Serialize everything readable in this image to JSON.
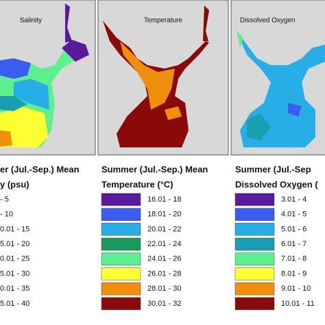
{
  "panels": [
    {
      "label": "Salinity",
      "legend_title": "er (Jul.-Sep.) Mean",
      "legend_subtitle": "y (psu)",
      "entries": [
        {
          "label": "- 5"
        },
        {
          "label": "- 10"
        },
        {
          "label": "0.01 - 15"
        },
        {
          "label": "5.01 - 20"
        },
        {
          "label": "0.01 - 25"
        },
        {
          "label": "5.01 - 30"
        },
        {
          "label": "0.01 - 35"
        },
        {
          "label": "5.01 - 40"
        }
      ]
    },
    {
      "label": "Temperature",
      "legend_title": "Summer (Jul.-Sep.) Mean",
      "legend_subtitle": "Temperature (°C)",
      "entries": [
        {
          "label": "16.01 - 18",
          "color": "#5a1a9c"
        },
        {
          "label": "18.01 - 20",
          "color": "#3b5cf0"
        },
        {
          "label": "20.01 - 22",
          "color": "#27aee6"
        },
        {
          "label": "22.01 - 24",
          "color": "#189a5c"
        },
        {
          "label": "24.01 - 26",
          "color": "#5ef08e"
        },
        {
          "label": "26.01 - 28",
          "color": "#ffff33"
        },
        {
          "label": "28.01 - 30",
          "color": "#ef8f0c"
        },
        {
          "label": "30.01 - 32",
          "color": "#8a0a0a"
        }
      ]
    },
    {
      "label": "Dissolved Oxygen",
      "legend_title": "Summer (Jul.-Sep",
      "legend_subtitle": "Dissolved Oxygen (",
      "entries": [
        {
          "label": "3.01 - 4",
          "color": "#5a1a9c"
        },
        {
          "label": "4.01 - 5",
          "color": "#3b5cf0"
        },
        {
          "label": "5.01 - 6",
          "color": "#27aee6"
        },
        {
          "label": "6.01 - 7",
          "color": "#1a9fb0"
        },
        {
          "label": "7.01 - 8",
          "color": "#5ef08e"
        },
        {
          "label": "8.01 - 9",
          "color": "#ffff33"
        },
        {
          "label": "9.01 - 10",
          "color": "#ef8f0c"
        },
        {
          "label": "10.01 - 11",
          "color": "#8a0a0a"
        }
      ]
    }
  ]
}
